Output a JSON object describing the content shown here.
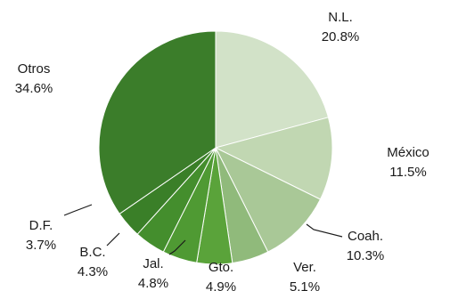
{
  "chart_data": {
    "type": "pie",
    "title": "",
    "slices": [
      {
        "label": "N.L.",
        "value_text": "20.8%",
        "value": 20.8,
        "color": "#d2e2c8"
      },
      {
        "label": "México",
        "value_text": "11.5%",
        "value": 11.5,
        "color": "#c1d7b2"
      },
      {
        "label": "Coah.",
        "value_text": "10.3%",
        "value": 10.3,
        "color": "#a9c897"
      },
      {
        "label": "Ver.",
        "value_text": "5.1%",
        "value": 5.1,
        "color": "#90ba7b"
      },
      {
        "label": "Gto.",
        "value_text": "4.9%",
        "value": 4.9,
        "color": "#5aa33a"
      },
      {
        "label": "Jal.",
        "value_text": "4.8%",
        "value": 4.8,
        "color": "#4f9a33"
      },
      {
        "label": "B.C.",
        "value_text": "4.3%",
        "value": 4.3,
        "color": "#448e2d"
      },
      {
        "label": "D.F.",
        "value_text": "3.7%",
        "value": 3.7,
        "color": "#3a7f28"
      },
      {
        "label": "Otros",
        "value_text": "34.6%",
        "value": 34.6,
        "color": "#3b7d2a"
      }
    ]
  }
}
